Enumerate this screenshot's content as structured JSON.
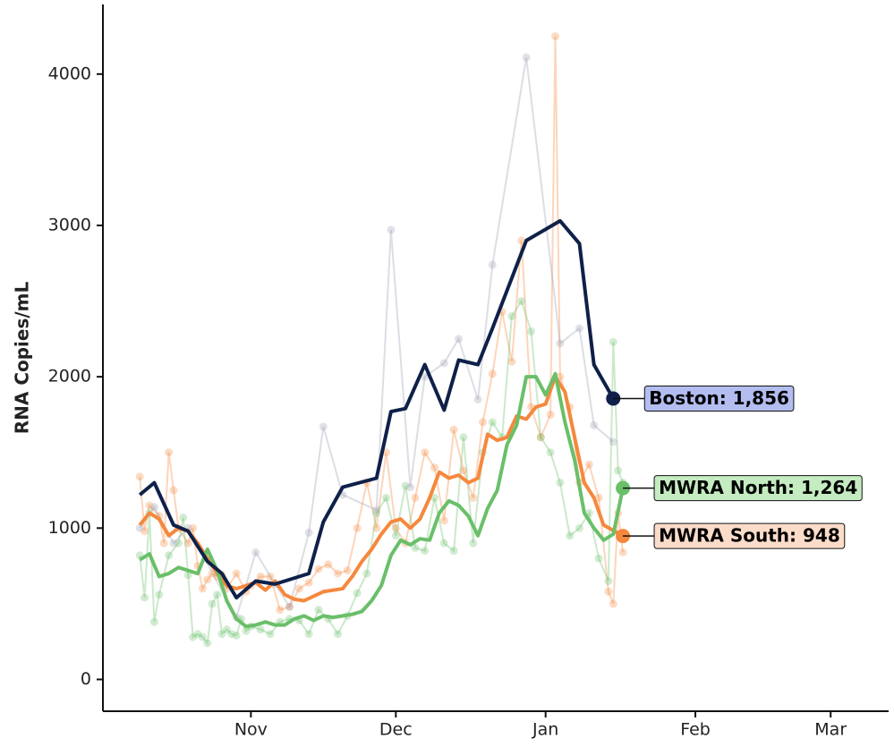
{
  "chart_data": {
    "type": "line",
    "y_label": "RNA Copies/mL",
    "xlim": [
      0,
      163
    ],
    "ylim": [
      -210,
      4460
    ],
    "xticks": [
      {
        "value": 31,
        "label": "Nov"
      },
      {
        "value": 61,
        "label": "Dec"
      },
      {
        "value": 92,
        "label": "Jan"
      },
      {
        "value": 123,
        "label": "Feb"
      },
      {
        "value": 151,
        "label": "Mar"
      }
    ],
    "yticks": [
      0,
      1000,
      2000,
      3000,
      4000
    ],
    "grid": false,
    "raw_series": [
      {
        "color": "#f5883d",
        "x": [
          8,
          9,
          10,
          12,
          13,
          14,
          15,
          16,
          18,
          19,
          20,
          21,
          22,
          23,
          24,
          25,
          26,
          28,
          30,
          31,
          33,
          35,
          37,
          39,
          41,
          43,
          45,
          47,
          49,
          51,
          53,
          55,
          57,
          59,
          61,
          63,
          65,
          67,
          69,
          71,
          73,
          75,
          77,
          79,
          81,
          83,
          85,
          87,
          89,
          91,
          93,
          94,
          95,
          97,
          99,
          101,
          103,
          105,
          106,
          107,
          108
        ],
        "values": [
          1340,
          980,
          1150,
          1080,
          900,
          1500,
          1250,
          1000,
          900,
          1000,
          750,
          600,
          660,
          700,
          680,
          690,
          600,
          700,
          580,
          620,
          680,
          680,
          460,
          480,
          600,
          640,
          730,
          760,
          700,
          720,
          1000,
          1300,
          1000,
          1500,
          1000,
          900,
          1200,
          1500,
          1400,
          1050,
          1650,
          1380,
          1200,
          1700,
          2020,
          2430,
          2100,
          2900,
          1800,
          1600,
          1750,
          4250,
          2000,
          1800,
          1300,
          1420,
          1200,
          580,
          500,
          1100,
          840
        ]
      },
      {
        "color": "#6abf69",
        "x": [
          8,
          9,
          10,
          11,
          12,
          14,
          16,
          17,
          18,
          19,
          20,
          21,
          22,
          23,
          24,
          25,
          26,
          27,
          28,
          29,
          30,
          31,
          33,
          35,
          37,
          39,
          41,
          43,
          45,
          47,
          49,
          51,
          53,
          55,
          57,
          59,
          61,
          63,
          65,
          67,
          69,
          71,
          73,
          75,
          77,
          79,
          81,
          83,
          85,
          87,
          89,
          91,
          93,
          95,
          97,
          99,
          101,
          103,
          105,
          106,
          107,
          108
        ],
        "values": [
          820,
          540,
          1100,
          380,
          560,
          820,
          900,
          1070,
          690,
          280,
          300,
          280,
          240,
          500,
          560,
          300,
          330,
          300,
          290,
          400,
          320,
          350,
          330,
          300,
          380,
          400,
          390,
          300,
          460,
          400,
          300,
          420,
          570,
          700,
          1100,
          1200,
          950,
          1280,
          870,
          850,
          1200,
          900,
          850,
          1600,
          900,
          1500,
          1700,
          1600,
          2400,
          2500,
          2300,
          1600,
          1500,
          1300,
          950,
          1000,
          1100,
          800,
          650,
          2230,
          1380,
          1300
        ]
      },
      {
        "color": "#9aa0b3",
        "x": [
          8,
          11,
          15,
          18,
          28,
          32,
          36,
          39,
          43,
          46,
          50,
          57,
          60,
          64,
          67,
          71,
          74,
          78,
          81,
          88,
          95,
          99,
          102,
          106
        ],
        "values": [
          1000,
          1140,
          900,
          1000,
          410,
          840,
          630,
          480,
          970,
          1670,
          1220,
          1120,
          2970,
          1270,
          2000,
          2090,
          2250,
          1850,
          2740,
          4110,
          2220,
          2320,
          1680,
          1570
        ]
      }
    ],
    "series": [
      {
        "label": "MWRA South: 948",
        "color": "#f5883d",
        "label_fill": "#fbdcc9",
        "x": [
          8,
          10,
          12,
          14,
          16,
          18,
          20,
          22,
          24,
          26,
          28,
          30,
          32,
          34,
          36,
          38,
          40,
          42,
          44,
          46,
          48,
          50,
          52,
          54,
          56,
          58,
          60,
          62,
          64,
          66,
          68,
          70,
          72,
          74,
          76,
          78,
          80,
          82,
          84,
          86,
          88,
          90,
          92,
          94,
          96,
          98,
          100,
          102,
          104,
          108
        ],
        "values": [
          1020,
          1100,
          1060,
          950,
          1000,
          980,
          900,
          800,
          700,
          620,
          600,
          620,
          640,
          590,
          650,
          560,
          530,
          520,
          550,
          580,
          590,
          600,
          680,
          780,
          860,
          960,
          1040,
          1060,
          1000,
          1060,
          1200,
          1370,
          1330,
          1350,
          1300,
          1330,
          1620,
          1580,
          1600,
          1740,
          1720,
          1800,
          1820,
          2000,
          1900,
          1600,
          1300,
          1200,
          1020,
          948
        ]
      },
      {
        "label": "MWRA North: 1,264",
        "color": "#6abf69",
        "label_fill": "#c4ecc0",
        "x": [
          8,
          10,
          12,
          14,
          16,
          18,
          20,
          22,
          24,
          26,
          28,
          30,
          32,
          34,
          36,
          38,
          40,
          42,
          44,
          46,
          48,
          50,
          52,
          54,
          56,
          58,
          60,
          62,
          64,
          66,
          68,
          70,
          72,
          74,
          76,
          78,
          80,
          82,
          84,
          86,
          88,
          90,
          92,
          94,
          96,
          98,
          100,
          102,
          104,
          106,
          108
        ],
        "values": [
          790,
          830,
          680,
          700,
          740,
          720,
          700,
          860,
          720,
          520,
          400,
          350,
          360,
          380,
          360,
          360,
          400,
          420,
          390,
          420,
          410,
          420,
          430,
          450,
          520,
          620,
          820,
          920,
          890,
          930,
          920,
          1100,
          1180,
          1150,
          1080,
          950,
          1130,
          1250,
          1550,
          1680,
          2000,
          2000,
          1880,
          2020,
          1700,
          1450,
          1100,
          1000,
          920,
          960,
          1264
        ]
      },
      {
        "label": "Boston: 1,856",
        "color": "#0f2149",
        "label_fill": "#b3bdf0",
        "x": [
          8,
          11,
          15,
          18,
          22,
          25,
          28,
          32,
          36,
          43,
          46,
          50,
          57,
          60,
          63,
          67,
          71,
          74,
          78,
          81,
          88,
          95,
          99,
          102,
          106
        ],
        "values": [
          1220,
          1300,
          1020,
          980,
          780,
          700,
          540,
          650,
          630,
          700,
          1040,
          1270,
          1330,
          1770,
          1790,
          2080,
          1780,
          2110,
          2080,
          2320,
          2900,
          3030,
          2880,
          2080,
          1856
        ]
      }
    ]
  }
}
